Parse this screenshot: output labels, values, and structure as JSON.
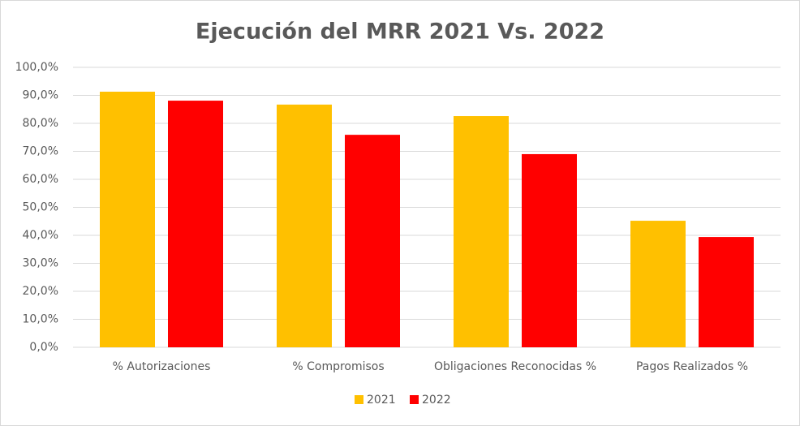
{
  "chart_data": {
    "type": "bar",
    "title": "Ejecución del MRR 2021 Vs. 2022",
    "categories": [
      "% Autorizaciones",
      "% Compromisos",
      "Obligaciones Reconocidas %",
      "Pagos Realizados %"
    ],
    "series": [
      {
        "name": "2021",
        "color": "#ffc000",
        "values": [
          91.3,
          86.7,
          82.6,
          45.2
        ]
      },
      {
        "name": "2022",
        "color": "#ff0000",
        "values": [
          88.1,
          75.9,
          69.0,
          39.4
        ]
      }
    ],
    "ylim": [
      0,
      100
    ],
    "yticks": [
      {
        "value": 0,
        "label": "0,0%"
      },
      {
        "value": 10,
        "label": "10,0%"
      },
      {
        "value": 20,
        "label": "20,0%"
      },
      {
        "value": 30,
        "label": "30,0%"
      },
      {
        "value": 40,
        "label": "40,0%"
      },
      {
        "value": 50,
        "label": "50,0%"
      },
      {
        "value": 60,
        "label": "60,0%"
      },
      {
        "value": 70,
        "label": "70,0%"
      },
      {
        "value": 80,
        "label": "80,0%"
      },
      {
        "value": 90,
        "label": "90,0%"
      },
      {
        "value": 100,
        "label": "100,0%"
      }
    ],
    "grid": true,
    "legend": "bottom"
  }
}
